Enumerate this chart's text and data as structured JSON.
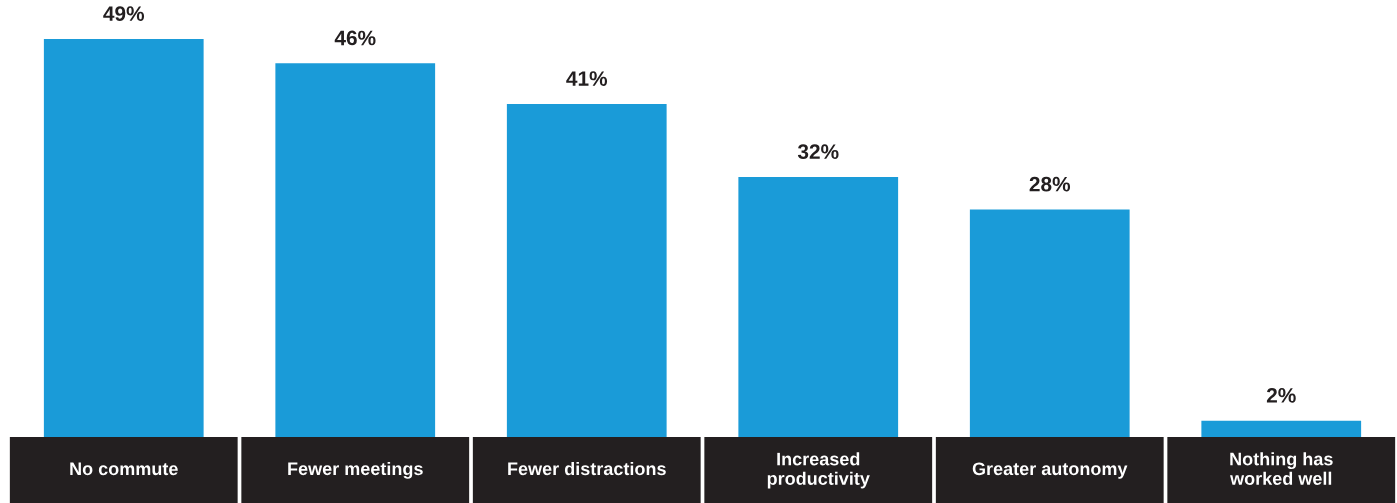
{
  "chart_data": {
    "type": "bar",
    "categories": [
      "No commute",
      "Fewer meetings",
      "Fewer distractions",
      "Increased\nproductivity",
      "Greater autonomy",
      "Nothing has\nworked well"
    ],
    "values": [
      49,
      46,
      41,
      32,
      28,
      2
    ],
    "value_labels": [
      "49%",
      "46%",
      "41%",
      "32%",
      "28%",
      "2%"
    ],
    "color": "#1a9bd8",
    "grid": false,
    "legend": false
  }
}
